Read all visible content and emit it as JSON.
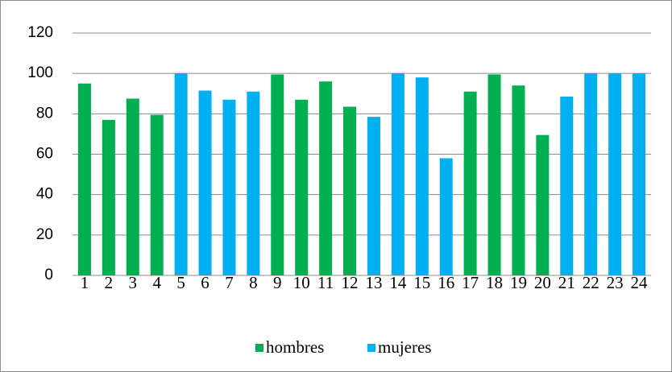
{
  "chart_data": {
    "type": "bar",
    "categories": [
      "1",
      "2",
      "3",
      "4",
      "5",
      "6",
      "7",
      "8",
      "9",
      "10",
      "11",
      "12",
      "13",
      "14",
      "15",
      "16",
      "17",
      "18",
      "19",
      "20",
      "21",
      "22",
      "23",
      "24"
    ],
    "series": [
      {
        "name": "hombres",
        "color": "#00b050",
        "values": [
          95,
          77,
          87.5,
          79.5,
          null,
          null,
          null,
          null,
          99.5,
          87,
          96,
          83.5,
          null,
          null,
          null,
          null,
          91,
          99.5,
          94,
          69.5,
          null,
          null,
          null,
          null
        ]
      },
      {
        "name": "mujeres",
        "color": "#00b0f0",
        "values": [
          null,
          null,
          null,
          null,
          100,
          91.5,
          87,
          91,
          null,
          null,
          null,
          null,
          78.5,
          100,
          98,
          58,
          null,
          null,
          null,
          null,
          88.5,
          100,
          100,
          100
        ]
      }
    ],
    "ylim": [
      0,
      120
    ],
    "yticks": [
      0,
      20,
      40,
      60,
      80,
      100,
      120
    ],
    "grid": true,
    "legend": "bottom"
  }
}
